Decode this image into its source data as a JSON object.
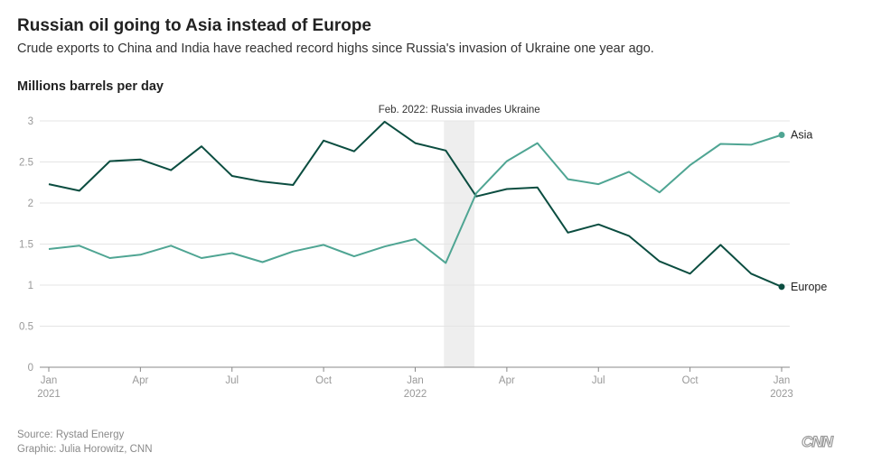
{
  "title": "Russian oil going to Asia instead of Europe",
  "subtitle": "Crude exports to China and India have reached record highs since Russia's invasion of Ukraine one year ago.",
  "source": "Source: Rystad Energy",
  "credit": "Graphic: Julia Horowitz, CNN",
  "logo": "CNN",
  "chart_data": {
    "type": "line",
    "ylabel": "Millions barrels per day",
    "xlabel": "",
    "ylim": [
      0,
      3
    ],
    "yticks": [
      "0",
      "0.5",
      "1",
      "1.5",
      "2",
      "2.5",
      "3"
    ],
    "xticks": [
      {
        "index": 0,
        "label": "Jan",
        "sublabel": "2021"
      },
      {
        "index": 3,
        "label": "Apr",
        "sublabel": ""
      },
      {
        "index": 6,
        "label": "Jul",
        "sublabel": ""
      },
      {
        "index": 9,
        "label": "Oct",
        "sublabel": ""
      },
      {
        "index": 12,
        "label": "Jan",
        "sublabel": "2022"
      },
      {
        "index": 15,
        "label": "Apr",
        "sublabel": ""
      },
      {
        "index": 18,
        "label": "Jul",
        "sublabel": ""
      },
      {
        "index": 21,
        "label": "Oct",
        "sublabel": ""
      },
      {
        "index": 24,
        "label": "Jan",
        "sublabel": "2023"
      }
    ],
    "annotation": {
      "label": "Feb. 2022: Russia invades Ukraine",
      "from_index": 13,
      "to_index": 14
    },
    "series": [
      {
        "name": "Europe",
        "color": "#0b4d40",
        "values": [
          2.23,
          2.15,
          2.51,
          2.53,
          2.4,
          2.69,
          2.33,
          2.26,
          2.22,
          2.76,
          2.63,
          2.99,
          2.73,
          2.64,
          2.08,
          2.17,
          2.19,
          1.64,
          1.74,
          1.6,
          1.29,
          1.14,
          1.49,
          1.14,
          0.98
        ]
      },
      {
        "name": "Asia",
        "color": "#4fa593",
        "values": [
          1.44,
          1.48,
          1.33,
          1.37,
          1.48,
          1.33,
          1.39,
          1.28,
          1.41,
          1.49,
          1.35,
          1.47,
          1.56,
          1.27,
          2.12,
          2.51,
          2.73,
          2.29,
          2.23,
          2.38,
          2.13,
          2.46,
          2.72,
          2.71,
          2.83
        ]
      }
    ]
  }
}
